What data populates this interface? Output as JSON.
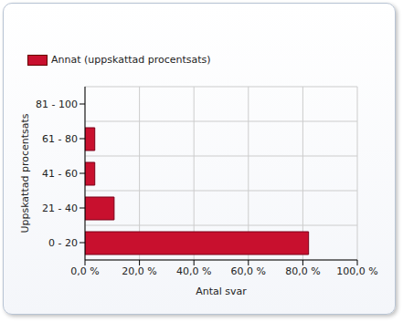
{
  "chart_data": {
    "type": "bar",
    "orientation": "horizontal",
    "categories": [
      "81 - 100",
      "61 - 80",
      "41 - 60",
      "21 - 40",
      "0 - 20"
    ],
    "series": [
      {
        "name": "Annat (uppskattad procentsats)",
        "color": "#c8102e",
        "values": [
          0,
          3.6,
          3.6,
          10.7,
          82.1
        ]
      }
    ],
    "x_label": "Antal svar",
    "y_label": "Uppskattad procentsats",
    "xlim": [
      0,
      100
    ],
    "xticks": [
      {
        "value": 0,
        "label": "0,0 %"
      },
      {
        "value": 20,
        "label": "20,0 %"
      },
      {
        "value": 40,
        "label": "40,0 %"
      },
      {
        "value": 60,
        "label": "60,0 %"
      },
      {
        "value": 80,
        "label": "80,0 %"
      },
      {
        "value": 100,
        "label": "100,0 %"
      }
    ],
    "grid": true,
    "legend": "top left"
  }
}
